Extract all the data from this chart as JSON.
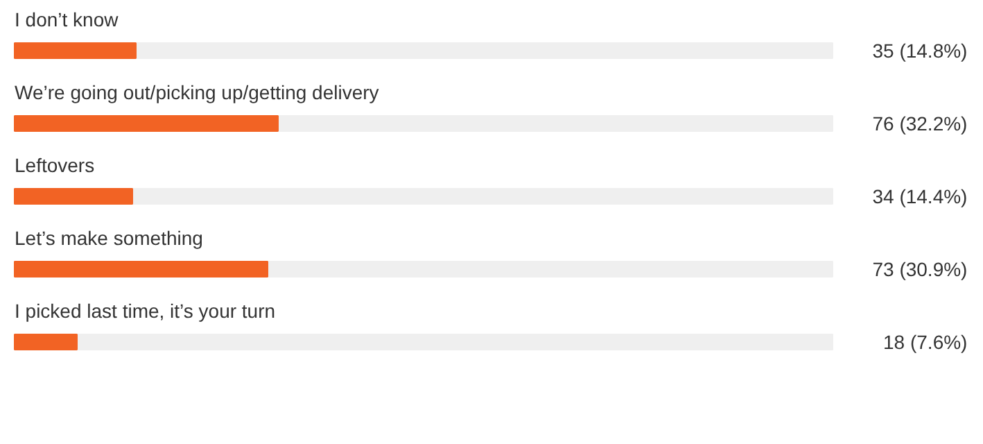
{
  "chart_data": {
    "type": "bar",
    "orientation": "horizontal",
    "categories": [
      "I don’t know",
      "We’re going out/picking up/getting delivery",
      "Leftovers",
      "Let’s make something",
      "I picked last time, it’s your turn"
    ],
    "values": [
      35,
      76,
      34,
      73,
      18
    ],
    "value_labels": [
      "35   (14.8%)",
      "76   (32.2%)",
      "34   (14.4%)",
      "73   (30.9%)",
      "18   (7.6%)"
    ],
    "xlim": [
      0,
      236
    ],
    "color": "#f26324"
  }
}
